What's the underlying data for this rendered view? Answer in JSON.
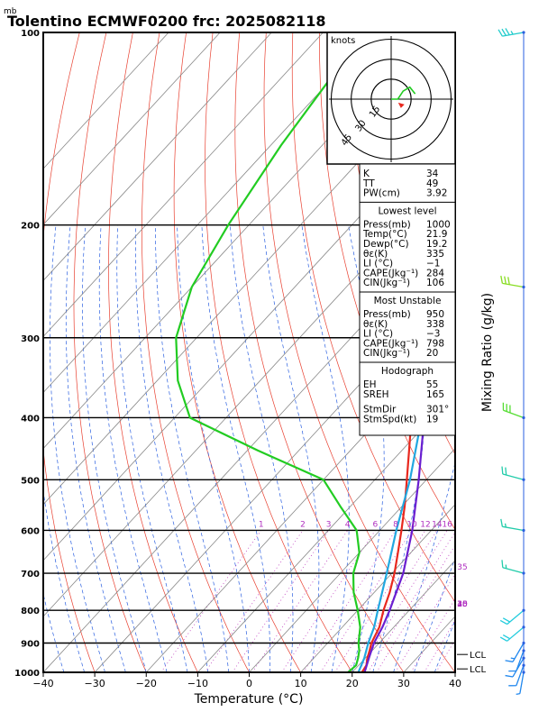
{
  "header": {
    "title": "Tolentino ECMWF0200 frc: 2025082118",
    "unit_mb": "mb"
  },
  "chart_data": {
    "type": "skew-t",
    "xlabel": "Temperature (°C)",
    "ylabel_right": "Mixing Ratio (g/kg)",
    "x_ticks": [
      "−40",
      "−30",
      "−20",
      "−10",
      "0",
      "10",
      "20",
      "30",
      "40"
    ],
    "x_tick_values": [
      -40,
      -30,
      -20,
      -10,
      0,
      10,
      20,
      30,
      40
    ],
    "p_ticks": [
      "100",
      "200",
      "300",
      "400",
      "500",
      "600",
      "700",
      "800",
      "900",
      "1000"
    ],
    "p_tick_values": [
      100,
      200,
      300,
      400,
      500,
      600,
      700,
      800,
      900,
      1000
    ],
    "mixing_ratio_labels": [
      "1",
      "2",
      "3",
      "4",
      "6",
      "8",
      "10",
      "12",
      "14",
      "16",
      "18",
      "20",
      "25",
      "30",
      "35",
      "40"
    ],
    "mixing_ratio_values": [
      1,
      2,
      3,
      4,
      6,
      8,
      10,
      12,
      14,
      16,
      18,
      20,
      25,
      30,
      35,
      40
    ],
    "lcl_labels": [
      "LCL",
      "LCL"
    ],
    "lcl_pressures": [
      950,
      975
    ],
    "series": [
      {
        "role": "temperature",
        "color": "#e8281e",
        "points": [
          [
            1000,
            21.9
          ],
          [
            975,
            21.5
          ],
          [
            950,
            20.4
          ],
          [
            925,
            19.5
          ],
          [
            900,
            18.5
          ],
          [
            850,
            17.2
          ],
          [
            800,
            15.0
          ],
          [
            750,
            13.0
          ],
          [
            700,
            10.5
          ],
          [
            650,
            7.5
          ],
          [
            600,
            4.2
          ],
          [
            550,
            0.5
          ],
          [
            500,
            -3.8
          ],
          [
            450,
            -8.6
          ],
          [
            400,
            -14.0
          ],
          [
            350,
            -20.7
          ],
          [
            300,
            -29.3
          ],
          [
            250,
            -40.0
          ],
          [
            200,
            -52.0
          ],
          [
            150,
            -63.0
          ],
          [
            100,
            -74.0
          ]
        ]
      },
      {
        "role": "dewpoint",
        "color": "#22cc22",
        "points": [
          [
            1000,
            19.2
          ],
          [
            975,
            19.5
          ],
          [
            950,
            18.6
          ],
          [
            925,
            17.5
          ],
          [
            900,
            16.0
          ],
          [
            850,
            13.5
          ],
          [
            800,
            10.0
          ],
          [
            750,
            6.0
          ],
          [
            700,
            2.5
          ],
          [
            650,
            0.0
          ],
          [
            600,
            -4.5
          ],
          [
            550,
            -12.0
          ],
          [
            500,
            -20.0
          ],
          [
            450,
            -38.0
          ],
          [
            400,
            -57.0
          ],
          [
            350,
            -66.0
          ],
          [
            300,
            -74.0
          ],
          [
            250,
            -80.0
          ],
          [
            200,
            -84.0
          ],
          [
            150,
            -88.0
          ],
          [
            100,
            -92.0
          ]
        ]
      },
      {
        "role": "parcel",
        "color": "#6a1fd0",
        "points": [
          [
            1000,
            22.4
          ],
          [
            950,
            20.7
          ],
          [
            900,
            19.0
          ],
          [
            850,
            17.8
          ],
          [
            800,
            16.2
          ],
          [
            700,
            12.2
          ],
          [
            600,
            6.3
          ],
          [
            500,
            -1.5
          ],
          [
            400,
            -11.5
          ],
          [
            300,
            -25.0
          ],
          [
            250,
            -34.0
          ],
          [
            200,
            -44.0
          ],
          [
            150,
            -58.0
          ],
          [
            125,
            -66.0
          ]
        ]
      },
      {
        "role": "virtual",
        "color": "#22a8e0",
        "points": [
          [
            1000,
            21.2
          ],
          [
            950,
            19.8
          ],
          [
            900,
            17.9
          ],
          [
            850,
            16.2
          ],
          [
            800,
            13.9
          ],
          [
            700,
            9.0
          ],
          [
            600,
            3.2
          ],
          [
            500,
            -3.2
          ],
          [
            400,
            -12.0
          ],
          [
            300,
            -28.0
          ],
          [
            250,
            -40.0
          ],
          [
            200,
            -56.0
          ],
          [
            150,
            -72.0
          ],
          [
            115,
            -83.0
          ]
        ]
      }
    ],
    "winds": [
      {
        "p": 100,
        "dir": 260,
        "spd": 35,
        "color": "#22cccc"
      },
      {
        "p": 250,
        "dir": 280,
        "spd": 30,
        "color": "#88dd22"
      },
      {
        "p": 400,
        "dir": 290,
        "spd": 30,
        "color": "#55dd33"
      },
      {
        "p": 500,
        "dir": 285,
        "spd": 20,
        "color": "#22ccaa"
      },
      {
        "p": 600,
        "dir": 280,
        "spd": 15,
        "color": "#22ccaa"
      },
      {
        "p": 700,
        "dir": 285,
        "spd": 15,
        "color": "#22ccaa"
      },
      {
        "p": 800,
        "dir": 230,
        "spd": 20,
        "color": "#22ccdd"
      },
      {
        "p": 850,
        "dir": 230,
        "spd": 20,
        "color": "#22ccdd"
      },
      {
        "p": 900,
        "dir": 210,
        "spd": 15,
        "color": "#2288ee"
      },
      {
        "p": 925,
        "dir": 200,
        "spd": 10,
        "color": "#2288ee"
      },
      {
        "p": 950,
        "dir": 210,
        "spd": 10,
        "color": "#2288ee"
      },
      {
        "p": 975,
        "dir": 200,
        "spd": 10,
        "color": "#2288ee"
      },
      {
        "p": 1000,
        "dir": 190,
        "spd": 5,
        "color": "#2288ee"
      }
    ],
    "hodograph": {
      "label": "knots",
      "ring_labels": [
        "15",
        "30",
        "45"
      ],
      "ring_values": [
        15,
        30,
        45
      ],
      "points": [
        [
          0,
          0
        ],
        [
          5,
          0
        ],
        [
          9,
          6
        ],
        [
          14,
          9
        ],
        [
          18,
          4
        ]
      ],
      "storm_motion": [
        10,
        -4
      ]
    }
  },
  "indices": {
    "top": [
      {
        "label": "K",
        "value": "34"
      },
      {
        "label": "TT",
        "value": "49"
      },
      {
        "label": "PW(cm)",
        "value": "3.92"
      }
    ],
    "lowest": {
      "header": "Lowest level",
      "rows": [
        {
          "label": "Press(mb)",
          "value": "1000"
        },
        {
          "label": "Temp(°C)",
          "value": "21.9"
        },
        {
          "label": "Dewp(°C)",
          "value": "19.2"
        },
        {
          "label": "θε(K)",
          "value": "335"
        },
        {
          "label": "LI (°C)",
          "value": "−1"
        },
        {
          "label": "CAPE(Jkg⁻¹)",
          "value": "284"
        },
        {
          "label": "CIN(Jkg⁻¹)",
          "value": "106"
        }
      ]
    },
    "unstable": {
      "header": "Most Unstable",
      "rows": [
        {
          "label": "Press(mb)",
          "value": "950"
        },
        {
          "label": "θε(K)",
          "value": "338"
        },
        {
          "label": "LI (°C)",
          "value": "−3"
        },
        {
          "label": "CAPE(Jkg⁻¹)",
          "value": "798"
        },
        {
          "label": "CIN(Jkg⁻¹)",
          "value": "20"
        }
      ]
    },
    "hodo": {
      "header": "Hodograph",
      "rows": [
        {
          "label": "EH",
          "value": "55"
        },
        {
          "label": "SREH",
          "value": "165"
        },
        {
          "label": "StmDir",
          "value": "301°"
        },
        {
          "label": "StmSpd(kt)",
          "value": "19"
        }
      ]
    }
  }
}
